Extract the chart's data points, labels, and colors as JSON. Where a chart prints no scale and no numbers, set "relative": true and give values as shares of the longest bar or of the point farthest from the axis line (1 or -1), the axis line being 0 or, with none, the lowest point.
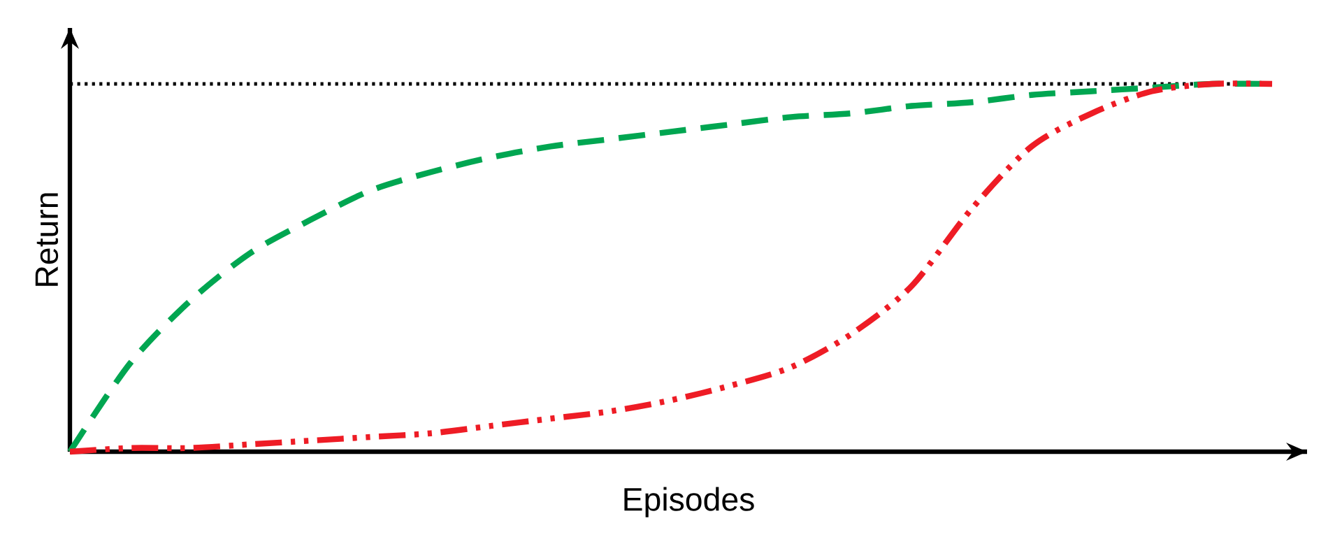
{
  "chart_data": {
    "type": "line",
    "xlabel": "Episodes",
    "ylabel": "Return",
    "relative": true,
    "marker": "none",
    "categories": [
      null,
      null,
      null,
      null,
      null,
      null,
      null,
      null,
      null,
      null,
      null,
      null,
      null,
      null,
      null,
      null,
      null,
      null,
      null,
      null,
      null
    ],
    "series": [
      {
        "color": "#00a651",
        "line_style": "dashed",
        "values": [
          0,
          0.24,
          0.41,
          0.54,
          0.63,
          0.71,
          0.76,
          0.8,
          0.83,
          0.85,
          0.87,
          0.89,
          0.91,
          0.92,
          0.94,
          0.95,
          0.97,
          0.98,
          0.99,
          1.0,
          1.0
        ]
      },
      {
        "color": "#ee1c25",
        "line_style": "dashdotdot",
        "values": [
          0,
          0.01,
          0.01,
          0.02,
          0.03,
          0.04,
          0.05,
          0.07,
          0.09,
          0.11,
          0.14,
          0.18,
          0.23,
          0.32,
          0.45,
          0.66,
          0.83,
          0.92,
          0.98,
          1.0,
          1.0
        ]
      }
    ],
    "ref_lines": [
      {
        "axis": "y",
        "value": 1,
        "color": "#000000",
        "line_style": "dotted"
      }
    ]
  }
}
